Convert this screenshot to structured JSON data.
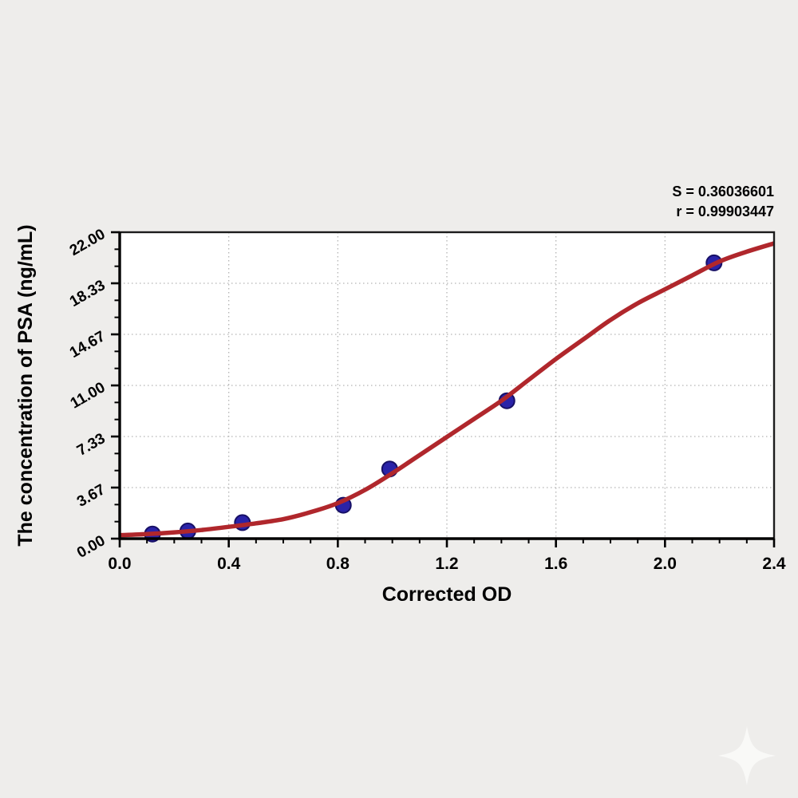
{
  "figure": {
    "background_color": "#eeedeb",
    "plot_background_color": "#ffffff",
    "frame_color": "#1c1c1c",
    "watermark_icon": "sparkle-star"
  },
  "chart_data": {
    "type": "scatter",
    "title": "",
    "xlabel": "Corrected OD",
    "ylabel": "The concentration of PSA (ng/mL)",
    "xlim": [
      0,
      2.4
    ],
    "ylim": [
      0,
      22
    ],
    "x_ticks": [
      0.0,
      0.4,
      0.8,
      1.2,
      1.6,
      2.0,
      2.4
    ],
    "x_tick_labels": [
      "0.0",
      "0.4",
      "0.8",
      "1.2",
      "1.6",
      "2.0",
      "2.4"
    ],
    "y_ticks": [
      0,
      3.6667,
      7.3333,
      11.0,
      14.6667,
      18.3333,
      22.0
    ],
    "y_tick_labels": [
      "0.00",
      "3.67",
      "7.33",
      "11.00",
      "14.67",
      "18.33",
      "22.00"
    ],
    "x_minor_tick_step": 0.1,
    "y_minor_ticks_per_major": 2,
    "grid": "dotted-major",
    "grid_color": "#b4b4b4",
    "axis_color": "#000000",
    "legend": "none",
    "annotations": [
      "S = 0.36036601",
      "r = 0.99903447"
    ],
    "series": [
      {
        "name": "standard-points",
        "type": "scatter",
        "color": "#2a23a8",
        "edge_color": "#171066",
        "points": [
          [
            0.12,
            0.33
          ],
          [
            0.25,
            0.55
          ],
          [
            0.45,
            1.15
          ],
          [
            0.82,
            2.4
          ],
          [
            0.99,
            5.0
          ],
          [
            1.42,
            9.9
          ],
          [
            2.18,
            19.8
          ]
        ]
      },
      {
        "name": "4pl-fit-curve",
        "type": "line",
        "color": "#b0272c",
        "points": [
          [
            0.0,
            0.25
          ],
          [
            0.1,
            0.33
          ],
          [
            0.2,
            0.45
          ],
          [
            0.3,
            0.62
          ],
          [
            0.4,
            0.85
          ],
          [
            0.5,
            1.1
          ],
          [
            0.6,
            1.4
          ],
          [
            0.7,
            1.9
          ],
          [
            0.8,
            2.55
          ],
          [
            0.9,
            3.5
          ],
          [
            1.0,
            4.7
          ],
          [
            1.1,
            6.0
          ],
          [
            1.2,
            7.3
          ],
          [
            1.3,
            8.6
          ],
          [
            1.4,
            9.9
          ],
          [
            1.5,
            11.4
          ],
          [
            1.6,
            12.9
          ],
          [
            1.7,
            14.3
          ],
          [
            1.8,
            15.7
          ],
          [
            1.9,
            16.9
          ],
          [
            2.0,
            17.9
          ],
          [
            2.1,
            18.9
          ],
          [
            2.2,
            19.9
          ],
          [
            2.3,
            20.6
          ],
          [
            2.4,
            21.2
          ]
        ]
      }
    ]
  }
}
